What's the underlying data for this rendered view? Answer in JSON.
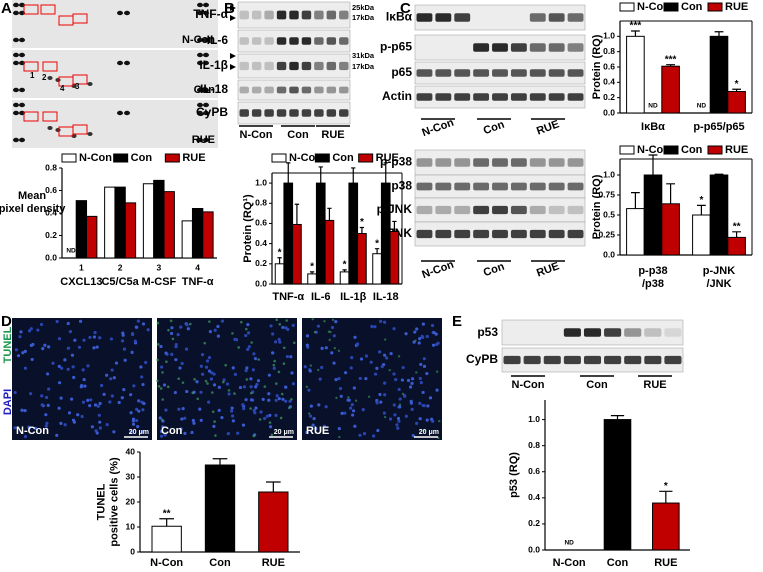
{
  "panels": [
    "A",
    "B",
    "C",
    "D",
    "E"
  ],
  "panel_a": {
    "image_labels": [
      "N-Con",
      "Con",
      "RUE"
    ],
    "spot_numbers": [
      "1",
      "2",
      "4",
      "3"
    ]
  },
  "panel_b": {
    "blot_labels": [
      "TNF-α",
      "IL-6",
      "IL-1β",
      "IL-18",
      "CyPB"
    ],
    "size_markers": [
      "25kDa",
      "17kDa",
      "31kDa",
      "17kDa"
    ],
    "lanes": [
      "N-Con",
      "Con",
      "RUE"
    ]
  },
  "panel_c": {
    "blot_labels_top": [
      "IκBα",
      "p-p65",
      "p65",
      "Actin"
    ],
    "lanes_top": [
      "N-Con",
      "Con",
      "RUE"
    ],
    "blot_labels_bottom": [
      "p-p38",
      "p38",
      "p-JNK",
      "JNK"
    ],
    "lanes_bottom": [
      "N-Con",
      "Con",
      "RUE"
    ]
  },
  "panel_d": {
    "stains": [
      "TUNEL",
      "DAPI"
    ],
    "image_labels": [
      "N-Con",
      "Con",
      "RUE"
    ],
    "scale_bar": "20 μm"
  },
  "panel_e": {
    "blot_labels": [
      "p53",
      "CyPB"
    ],
    "lanes": [
      "N-Con",
      "Con",
      "RUE"
    ]
  },
  "chart_data": [
    {
      "type": "bar",
      "y_label": [
        "Mean",
        "pixel density"
      ],
      "legend": "top",
      "categories": [
        "CXCL13",
        "C5/C5a",
        "M-CSF",
        "TNF-α"
      ],
      "category_numbers": [
        "1",
        "2",
        "3",
        "4"
      ],
      "series": [
        {
          "name": "N-Con",
          "color": "#ffffff",
          "values": [
            null,
            0.63,
            0.66,
            0.33
          ]
        },
        {
          "name": "Con",
          "color": "#000000",
          "values": [
            0.51,
            0.63,
            0.69,
            0.44
          ]
        },
        {
          "name": "RUE",
          "color": "#c00000",
          "values": [
            0.37,
            0.49,
            0.59,
            0.41
          ]
        }
      ],
      "nd_label": "ND",
      "ylim": [
        0,
        0.8
      ],
      "yticks": [
        {
          "value": 0,
          "label": "0.0"
        },
        0.2,
        0.4,
        0.6,
        0.8
      ]
    },
    {
      "type": "bar",
      "y_label": [
        "Protein (RQ¹)"
      ],
      "legend": "top",
      "categories": [
        "TNF-α",
        "IL-6",
        "IL-1β",
        "IL-18"
      ],
      "series": [
        {
          "name": "N-Con",
          "color": "#ffffff",
          "values": [
            0.2,
            0.1,
            0.12,
            0.3
          ],
          "errors": [
            0.06,
            0.02,
            0.02,
            0.05
          ],
          "significance": [
            "*",
            "*",
            "*",
            "*"
          ]
        },
        {
          "name": "Con",
          "color": "#000000",
          "values": [
            1.0,
            1.0,
            1.0,
            1.0
          ],
          "errors": [
            0.2,
            0.16,
            0.15,
            0.2
          ]
        },
        {
          "name": "RUE",
          "color": "#c00000",
          "values": [
            0.59,
            0.63,
            0.5,
            0.52
          ],
          "errors": [
            0.2,
            0.12,
            0.06,
            0.1
          ],
          "significance": [
            null,
            null,
            "*",
            null
          ]
        }
      ],
      "ylim": [
        0,
        1.1
      ],
      "yticks": [
        {
          "value": 0,
          "label": "0.0"
        },
        0.2,
        0.4,
        0.6,
        0.8,
        {
          "value": 1,
          "label": "1.0"
        }
      ]
    },
    {
      "type": "bar",
      "y_label": [
        "Protein (RQ)"
      ],
      "legend": "top",
      "categories": [
        "IκBα",
        "p-p65/p65"
      ],
      "series": [
        {
          "name": "N-Con",
          "color": "#ffffff",
          "values": [
            1.0,
            null
          ],
          "errors": [
            0.07,
            null
          ],
          "significance": [
            "***",
            null
          ]
        },
        {
          "name": "Con",
          "color": "#000000",
          "values": [
            null,
            1.0
          ],
          "errors": [
            null,
            0.06
          ]
        },
        {
          "name": "RUE",
          "color": "#c00000",
          "values": [
            0.61,
            0.28
          ],
          "errors": [
            0.02,
            0.03
          ],
          "significance": [
            "***",
            "*"
          ]
        }
      ],
      "nd_label": "ND",
      "ylim": [
        0,
        1.2
      ],
      "yticks": [
        {
          "value": 0,
          "label": "0.0"
        },
        0.2,
        0.4,
        0.6,
        0.8,
        {
          "value": 1,
          "label": "1.0"
        }
      ]
    },
    {
      "type": "bar",
      "y_label": [
        "Protein (RQ)"
      ],
      "legend": "top",
      "categories": [
        [
          "p-p38",
          "/p38"
        ],
        [
          "p-JNK",
          "/JNK"
        ]
      ],
      "series": [
        {
          "name": "N-Con",
          "color": "#ffffff",
          "values": [
            0.58,
            0.5
          ],
          "errors": [
            0.2,
            0.12
          ],
          "significance": [
            null,
            "*"
          ]
        },
        {
          "name": "Con",
          "color": "#000000",
          "values": [
            1.0,
            1.0
          ],
          "errors": [
            0.25,
            0.01
          ]
        },
        {
          "name": "RUE",
          "color": "#c00000",
          "values": [
            0.64,
            0.22
          ],
          "errors": [
            0.25,
            0.07
          ],
          "significance": [
            null,
            "**"
          ]
        }
      ],
      "ylim": [
        0,
        1.2
      ],
      "yticks": [
        {
          "value": 0,
          "label": "0.0"
        },
        0.25,
        0.5,
        0.75,
        {
          "value": 1,
          "label": "1.0"
        }
      ]
    },
    {
      "type": "bar",
      "y_label": [
        "TUNEL",
        "positive cells (%)"
      ],
      "categories": [
        "N-Con",
        "Con",
        "RUE"
      ],
      "values": [
        10.3,
        34.8,
        24
      ],
      "errors": [
        3,
        2.5,
        4
      ],
      "colors": [
        "#ffffff",
        "#000000",
        "#c00000"
      ],
      "significance": [
        "**",
        null,
        null
      ],
      "ylim": [
        0,
        40
      ],
      "yticks": [
        0,
        10,
        20,
        30,
        40
      ]
    },
    {
      "type": "bar",
      "y_label": [
        "p53 (RQ)"
      ],
      "categories": [
        "N-Con",
        "Con",
        "RUE"
      ],
      "values": [
        null,
        1.0,
        0.36
      ],
      "errors": [
        null,
        0.03,
        0.09
      ],
      "colors": [
        "#ffffff",
        "#000000",
        "#c00000"
      ],
      "significance": [
        null,
        null,
        "*"
      ],
      "nd_label": "ND",
      "ylim": [
        0,
        1.15
      ],
      "yticks": [
        {
          "value": 0,
          "label": "0.0"
        },
        0.2,
        0.4,
        0.6,
        0.8,
        {
          "value": 1,
          "label": "1.0"
        }
      ]
    }
  ]
}
